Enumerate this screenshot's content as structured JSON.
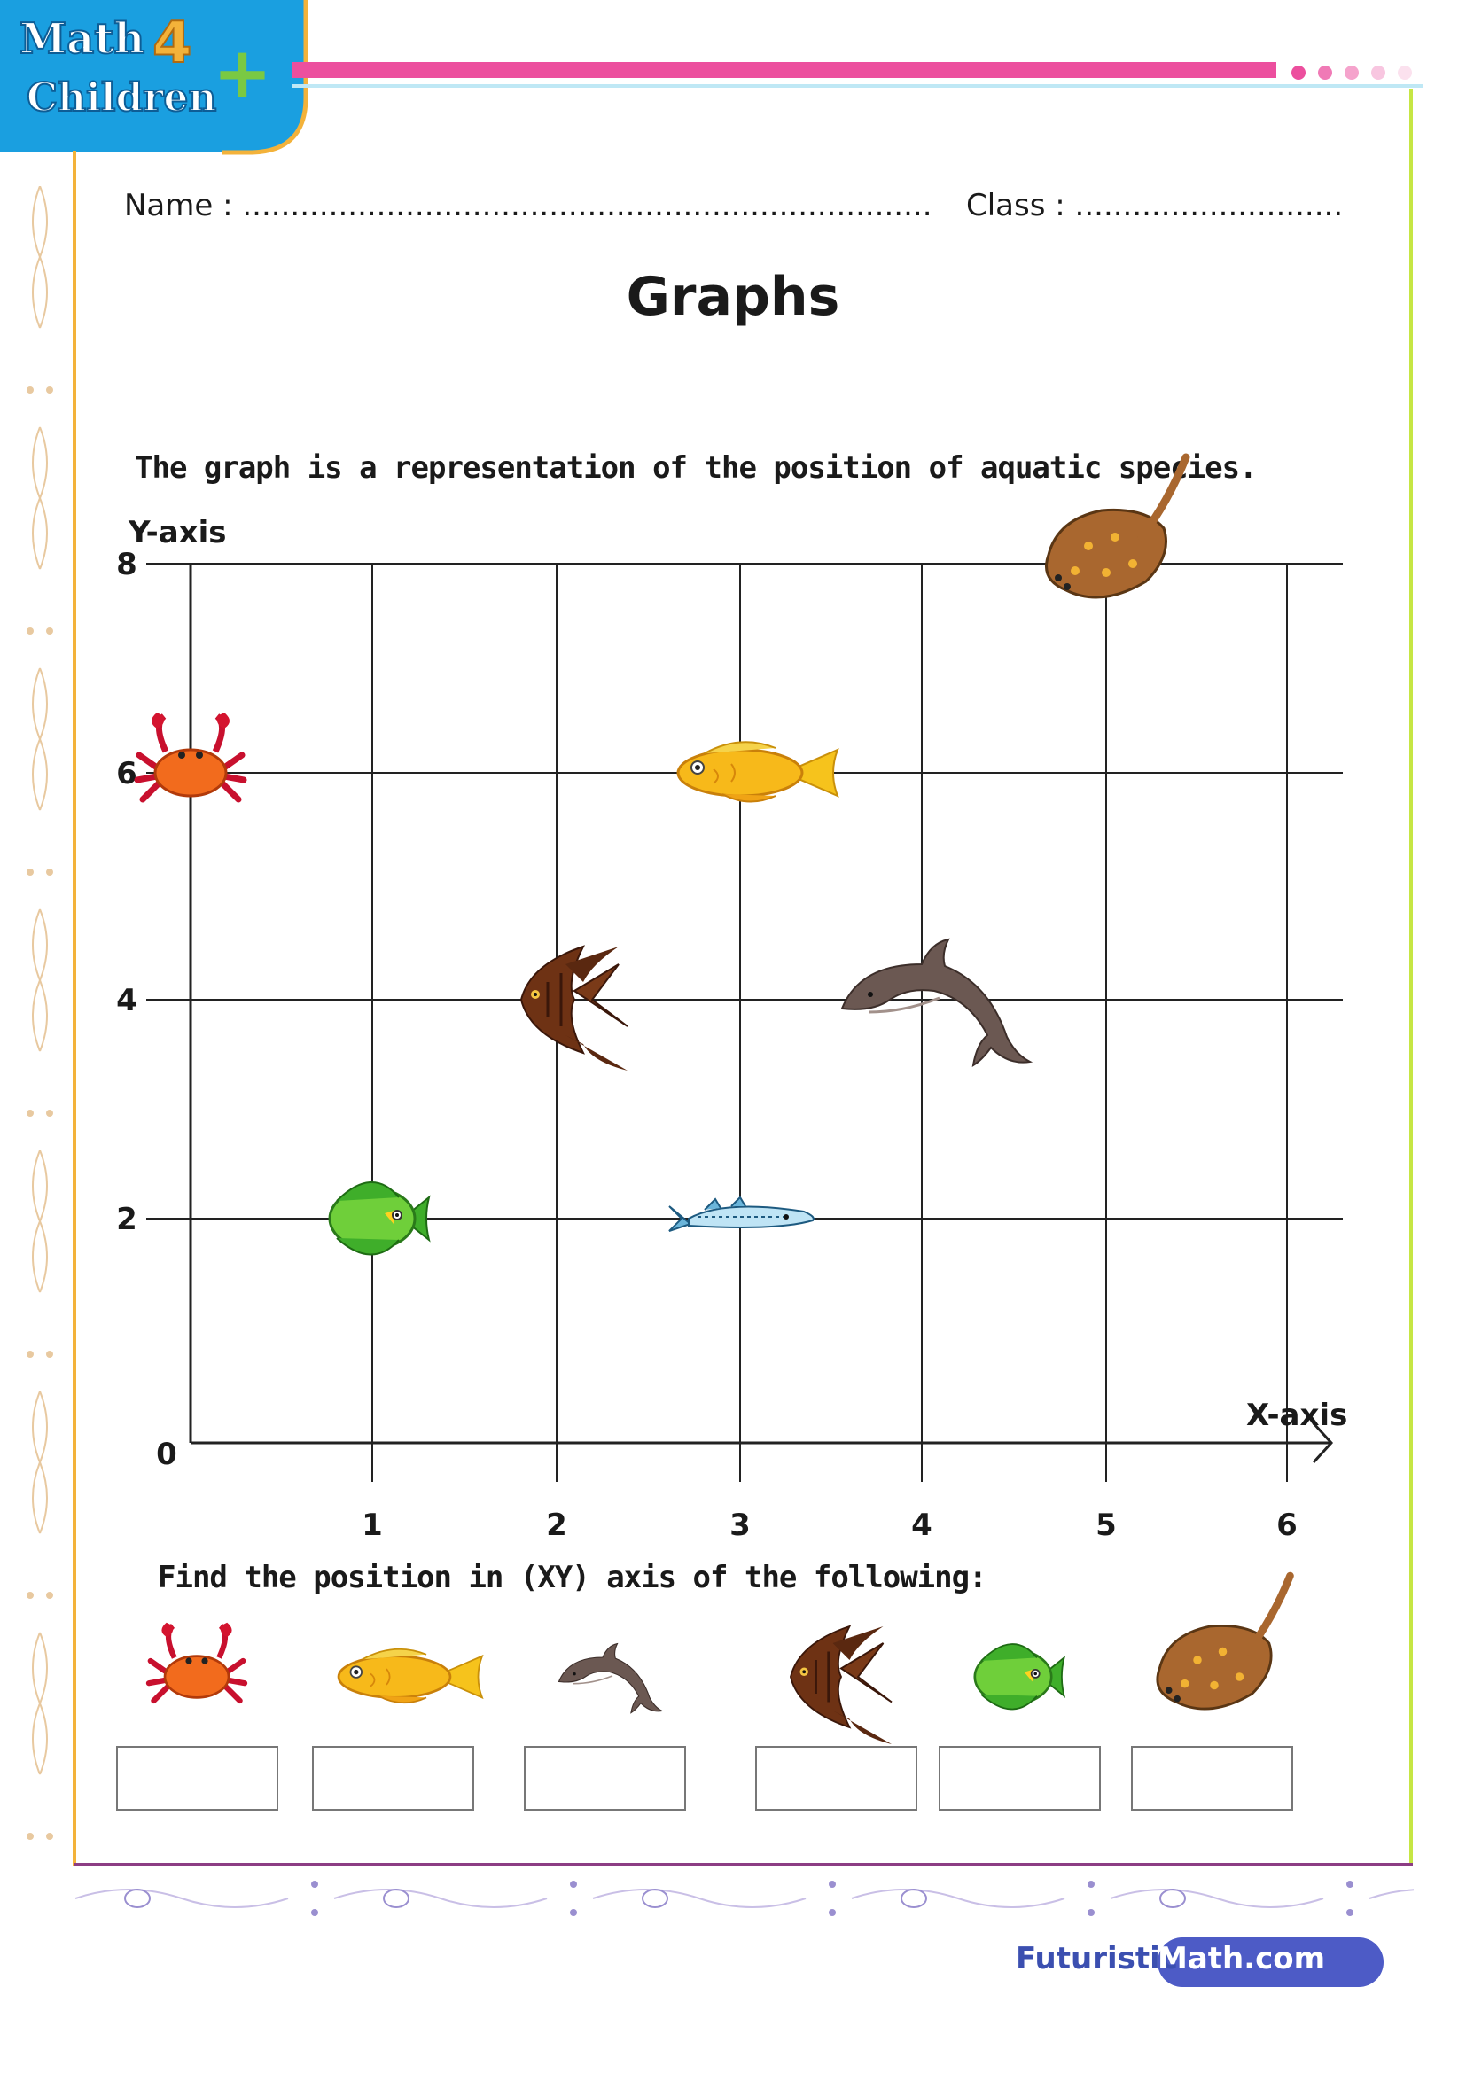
{
  "header": {
    "logo_line1": "Math",
    "logo_number": "4",
    "logo_line2": "Children",
    "logo_plus": "+",
    "name_label": "Name : ........................................................................",
    "class_label": "Class : ............................"
  },
  "title": "Graphs",
  "description": "The graph is a representation of the position of aquatic species.",
  "question": "Find the position in (XY) axis of the following:",
  "chart_data": {
    "type": "scatter",
    "title": "",
    "xlabel": "X-axis",
    "ylabel": "Y-axis",
    "x_ticks": [
      1,
      2,
      3,
      4,
      5,
      6
    ],
    "y_ticks": [
      2,
      4,
      6,
      8
    ],
    "origin_label": "0",
    "xlim": [
      0,
      6
    ],
    "ylim": [
      0,
      8
    ],
    "grid": true,
    "points": [
      {
        "icon": "stingray-icon",
        "x": 5,
        "y": 8
      },
      {
        "icon": "crab-icon",
        "x": 0,
        "y": 6
      },
      {
        "icon": "yellow-fish-icon",
        "x": 3,
        "y": 6
      },
      {
        "icon": "angelfish-icon",
        "x": 2,
        "y": 4
      },
      {
        "icon": "dolphin-icon",
        "x": 4,
        "y": 4
      },
      {
        "icon": "green-fish-icon",
        "x": 1,
        "y": 2
      },
      {
        "icon": "barracuda-icon",
        "x": 3,
        "y": 2
      }
    ]
  },
  "answer_row": [
    "crab-icon",
    "yellow-fish-icon",
    "dolphin-icon",
    "angelfish-icon",
    "green-fish-icon",
    "stingray-icon"
  ],
  "colors": {
    "pink": "#ec4f9e",
    "blue": "#1a9fe0",
    "orange": "#f3b23a",
    "green": "#c6e644",
    "purple": "#8c3d84",
    "brand": "#4d5bc6"
  },
  "footer": {
    "part1": "Futuristic",
    "part2": "Math.com"
  }
}
